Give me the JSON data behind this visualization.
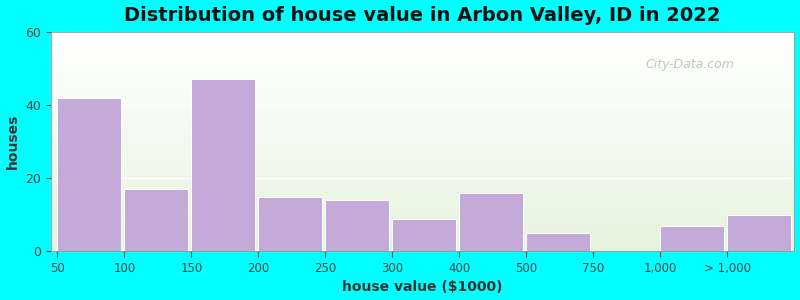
{
  "title": "Distribution of house value in Arbon Valley, ID in 2022",
  "xlabel": "house value ($1000)",
  "ylabel": "houses",
  "bar_color": "#C4AAD8",
  "background_color": "#00FFFF",
  "ylim": [
    0,
    60
  ],
  "yticks": [
    0,
    20,
    40,
    60
  ],
  "categories": [
    "50",
    "100",
    "150",
    "200",
    "250",
    "300",
    "400",
    "500",
    "750",
    "1,000",
    "> 1,000"
  ],
  "values": [
    42,
    17,
    47,
    15,
    14,
    9,
    16,
    5,
    0,
    7,
    10
  ],
  "watermark": "City-Data.com",
  "title_fontsize": 14,
  "axis_label_fontsize": 10
}
